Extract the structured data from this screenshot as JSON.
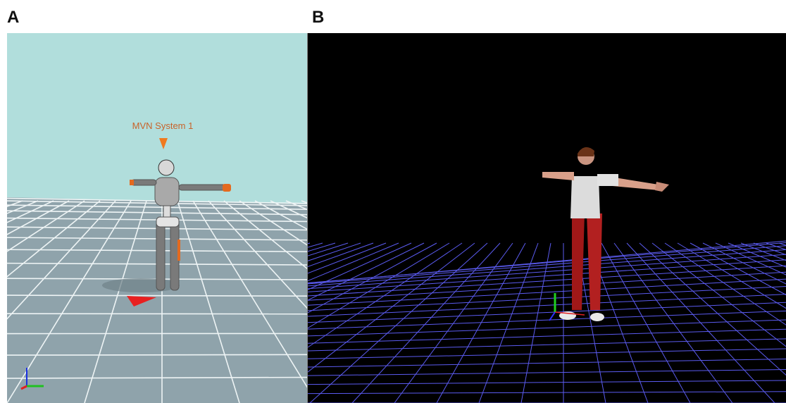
{
  "panels": [
    {
      "label": "A",
      "caption": "MVN System 1"
    },
    {
      "label": "B"
    }
  ]
}
